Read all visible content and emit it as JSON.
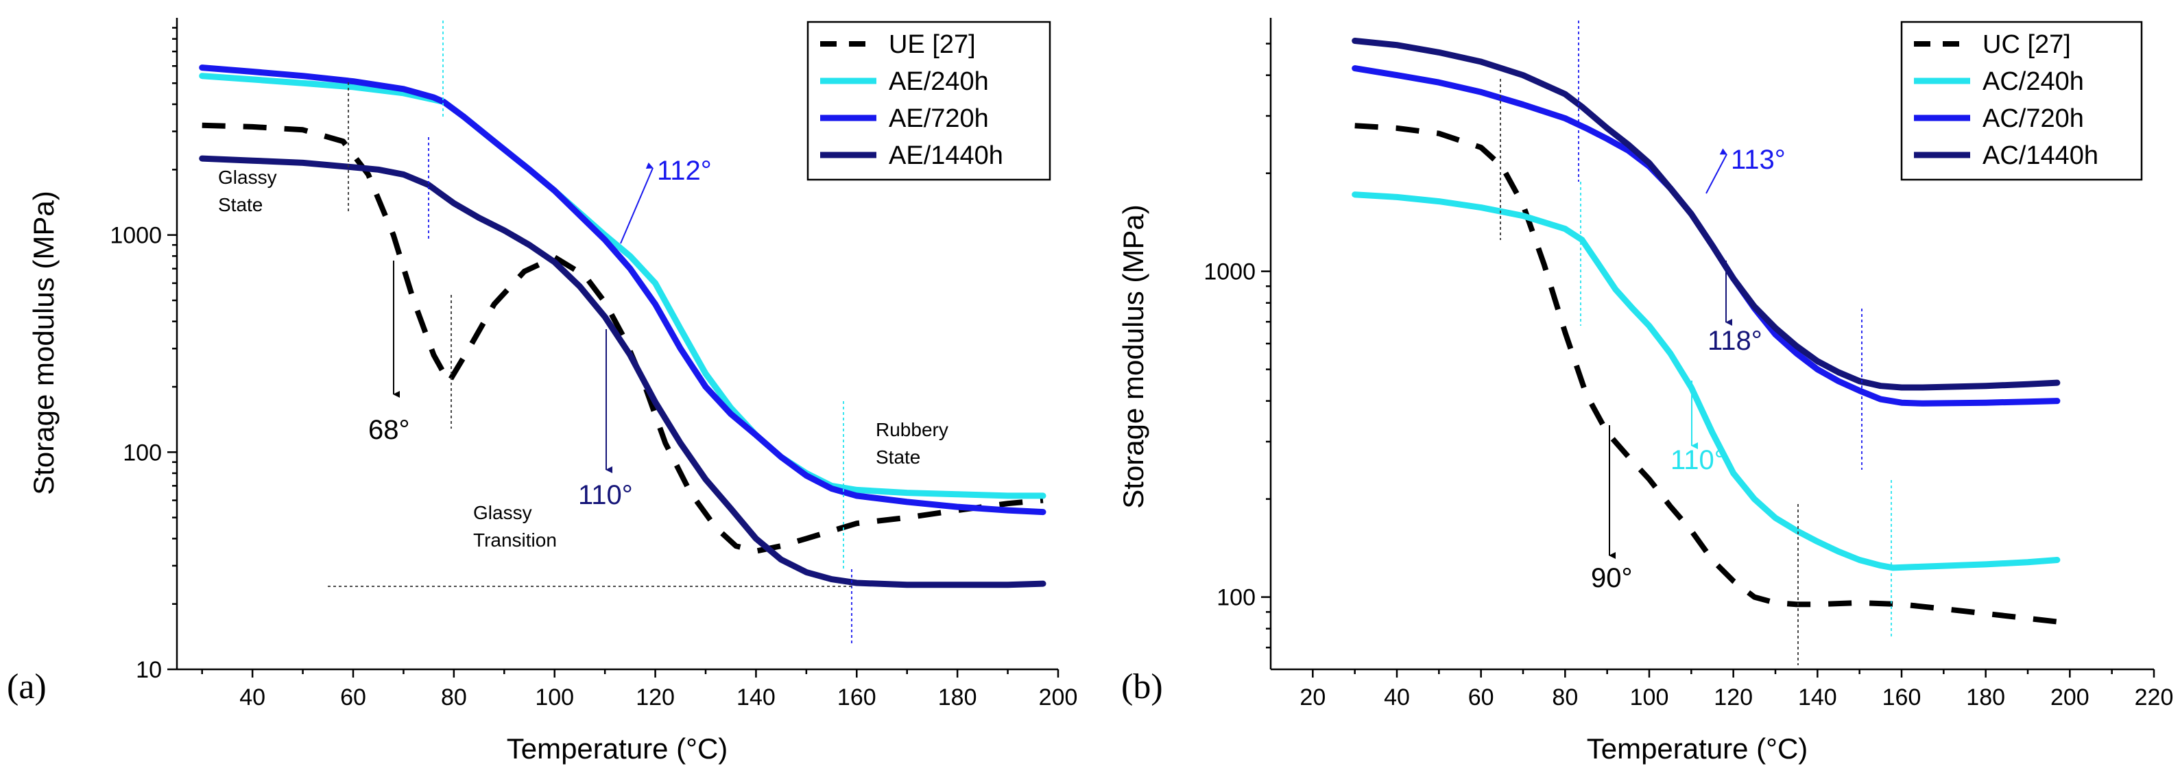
{
  "chart_data": [
    {
      "panel_label": "(a)",
      "type": "line",
      "xlabel": "Temperature (°C)",
      "ylabel": "Storage modulus (MPa)",
      "xlim": [
        25,
        200
      ],
      "ylim": [
        10,
        10000
      ],
      "yscale": "log",
      "xticks": [
        40,
        60,
        80,
        100,
        120,
        140,
        160,
        180,
        200
      ],
      "yticks": [
        10,
        100,
        1000
      ],
      "ytick_labels": [
        "10",
        "100",
        "1000"
      ],
      "legend_position": "top-right",
      "series": [
        {
          "name": "UE [27]",
          "color": "#000000",
          "dashed": true,
          "x": [
            30,
            40,
            50,
            58,
            63,
            68,
            72,
            76,
            79,
            83,
            88,
            94,
            100,
            106,
            110,
            114,
            118,
            122,
            127,
            132,
            136,
            140,
            145,
            150,
            160,
            170,
            180,
            190,
            197
          ],
          "y": [
            3200,
            3150,
            3050,
            2700,
            1900,
            1000,
            500,
            280,
            210,
            300,
            480,
            680,
            790,
            650,
            490,
            330,
            200,
            110,
            65,
            45,
            37,
            35,
            37,
            40,
            47,
            50,
            54,
            58,
            60
          ]
        },
        {
          "name": "AE/240h",
          "color": "#25e3ee",
          "dashed": false,
          "x": [
            30,
            40,
            50,
            60,
            70,
            76,
            78,
            82,
            88,
            95,
            100,
            110,
            115,
            120,
            125,
            130,
            135,
            140,
            145,
            150,
            155,
            160,
            170,
            180,
            190,
            197
          ],
          "y": [
            5400,
            5200,
            5000,
            4800,
            4500,
            4200,
            4100,
            3500,
            2700,
            2000,
            1600,
            1000,
            800,
            600,
            370,
            230,
            160,
            120,
            95,
            80,
            70,
            67,
            65,
            64,
            63,
            63
          ]
        },
        {
          "name": "AE/720h",
          "color": "#1818ee",
          "dashed": false,
          "x": [
            30,
            40,
            50,
            60,
            70,
            76,
            78,
            82,
            88,
            95,
            100,
            110,
            115,
            120,
            125,
            130,
            135,
            140,
            145,
            150,
            155,
            160,
            170,
            180,
            190,
            197
          ],
          "y": [
            5900,
            5650,
            5400,
            5100,
            4700,
            4300,
            4100,
            3500,
            2700,
            2000,
            1600,
            950,
            700,
            480,
            300,
            200,
            150,
            120,
            95,
            78,
            68,
            63,
            59,
            56,
            54,
            53
          ]
        },
        {
          "name": "AE/1440h",
          "color": "#141478",
          "dashed": false,
          "x": [
            30,
            40,
            50,
            60,
            65,
            70,
            75,
            80,
            85,
            90,
            95,
            100,
            105,
            110,
            115,
            120,
            125,
            130,
            135,
            140,
            145,
            150,
            155,
            160,
            170,
            180,
            190,
            197
          ],
          "y": [
            2250,
            2200,
            2150,
            2050,
            2000,
            1900,
            1700,
            1400,
            1200,
            1050,
            900,
            750,
            580,
            420,
            280,
            170,
            110,
            75,
            55,
            40,
            32,
            28,
            26,
            25,
            24.5,
            24.5,
            24.5,
            24.8
          ]
        }
      ],
      "annotations": [
        {
          "text": "Glassy",
          "color": "#000000"
        },
        {
          "text": "State",
          "color": "#000000"
        },
        {
          "text": "Glassy",
          "color": "#000000"
        },
        {
          "text": "Transition",
          "color": "#000000"
        },
        {
          "text": "Rubbery",
          "color": "#000000"
        },
        {
          "text": "State",
          "color": "#000000"
        },
        {
          "text": "68°",
          "color": "#000000"
        },
        {
          "text": "110°",
          "color": "#141478"
        },
        {
          "text": "112°",
          "color": "#1818ee"
        }
      ]
    },
    {
      "panel_label": "(b)",
      "type": "line",
      "xlabel": "Temperature (°C)",
      "ylabel": "Storage modulus (MPa)",
      "xlim": [
        10,
        220
      ],
      "ylim": [
        60,
        6000
      ],
      "yscale": "log",
      "xticks": [
        20,
        40,
        60,
        80,
        100,
        120,
        140,
        160,
        180,
        200,
        220
      ],
      "yticks": [
        100,
        1000
      ],
      "ytick_labels": [
        "100",
        "1000"
      ],
      "legend_position": "top-right",
      "series": [
        {
          "name": "UC [27]",
          "color": "#000000",
          "dashed": true,
          "x": [
            30,
            40,
            50,
            60,
            65,
            70,
            75,
            80,
            85,
            90,
            95,
            100,
            105,
            110,
            115,
            120,
            125,
            130,
            135,
            140,
            150,
            160,
            170,
            180,
            190,
            197
          ],
          "y": [
            2800,
            2750,
            2650,
            2400,
            2100,
            1600,
            1050,
            650,
            420,
            320,
            270,
            230,
            190,
            160,
            130,
            112,
            100,
            96,
            95,
            95,
            96,
            95,
            92,
            89,
            86,
            84
          ]
        },
        {
          "name": "AC/240h",
          "color": "#25e3ee",
          "dashed": false,
          "x": [
            30,
            40,
            50,
            60,
            70,
            80,
            84,
            88,
            92,
            96,
            100,
            105,
            110,
            115,
            120,
            125,
            130,
            135,
            140,
            145,
            150,
            155,
            158,
            165,
            180,
            190,
            197
          ],
          "y": [
            1720,
            1690,
            1640,
            1570,
            1480,
            1350,
            1250,
            1050,
            880,
            770,
            680,
            560,
            440,
            320,
            240,
            200,
            175,
            160,
            148,
            138,
            130,
            125,
            123,
            124,
            126,
            128,
            130
          ]
        },
        {
          "name": "AC/720h",
          "color": "#1818ee",
          "dashed": false,
          "x": [
            30,
            40,
            50,
            60,
            70,
            80,
            85,
            90,
            95,
            100,
            105,
            110,
            115,
            120,
            125,
            130,
            135,
            140,
            145,
            150,
            155,
            160,
            165,
            180,
            190,
            197
          ],
          "y": [
            4200,
            4000,
            3800,
            3550,
            3250,
            2950,
            2750,
            2550,
            2350,
            2100,
            1800,
            1500,
            1200,
            950,
            770,
            640,
            560,
            500,
            460,
            430,
            405,
            395,
            393,
            395,
            398,
            400
          ]
        },
        {
          "name": "AC/1440h",
          "color": "#141478",
          "dashed": false,
          "x": [
            30,
            40,
            50,
            60,
            70,
            80,
            84,
            90,
            95,
            100,
            105,
            110,
            115,
            120,
            125,
            130,
            135,
            140,
            145,
            150,
            155,
            160,
            165,
            180,
            190,
            197
          ],
          "y": [
            5100,
            4950,
            4700,
            4400,
            4000,
            3500,
            3200,
            2750,
            2450,
            2150,
            1800,
            1500,
            1200,
            950,
            780,
            670,
            590,
            530,
            490,
            460,
            445,
            440,
            440,
            445,
            450,
            455
          ]
        }
      ],
      "annotations": [
        {
          "text": "90°",
          "color": "#000000"
        },
        {
          "text": "110°",
          "color": "#25e3ee"
        },
        {
          "text": "113°",
          "color": "#1818ee"
        },
        {
          "text": "118°",
          "color": "#141478"
        }
      ]
    }
  ]
}
